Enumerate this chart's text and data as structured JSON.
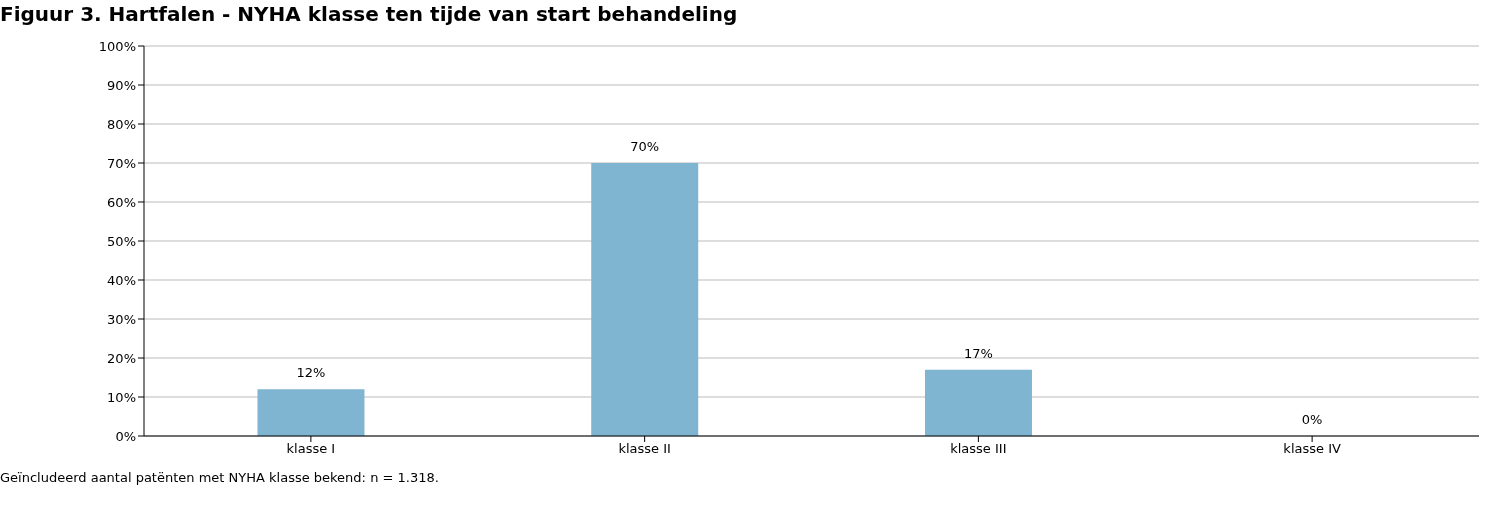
{
  "chart_data": {
    "type": "bar",
    "title": "Figuur 3. Hartfalen - NYHA klasse ten tijde van start behandeling",
    "categories": [
      "klasse I",
      "klasse II",
      "klasse III",
      "klasse IV"
    ],
    "values": [
      12,
      70,
      17,
      0
    ],
    "color": "#7fb5d1",
    "value_labels": [
      "12%",
      "70%",
      "17%",
      "0%"
    ],
    "ylim": [
      0,
      100
    ],
    "yticks": [
      {
        "value": 0,
        "label": "0%"
      },
      {
        "value": 10,
        "label": "10%"
      },
      {
        "value": 20,
        "label": "20%"
      },
      {
        "value": 30,
        "label": "30%"
      },
      {
        "value": 40,
        "label": "40%"
      },
      {
        "value": 50,
        "label": "50%"
      },
      {
        "value": 60,
        "label": "60%"
      },
      {
        "value": 70,
        "label": "70%"
      },
      {
        "value": 80,
        "label": "80%"
      },
      {
        "value": 90,
        "label": "90%"
      },
      {
        "value": 100,
        "label": "100%"
      }
    ],
    "grid": "y",
    "annotations": [
      "Geïncludeerd aantal patënten met NYHA klasse bekend: n = 1.318."
    ]
  }
}
